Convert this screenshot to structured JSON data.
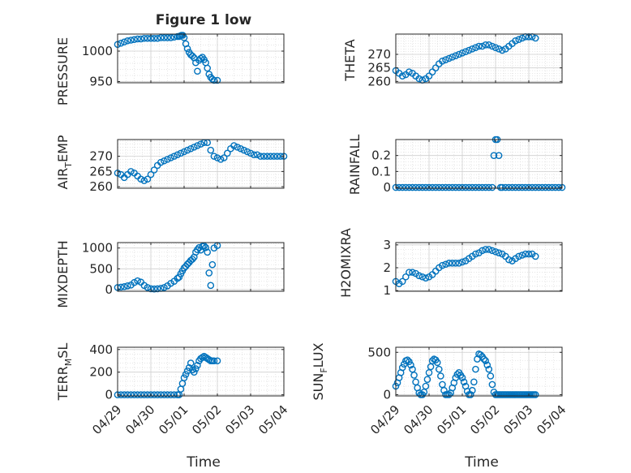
{
  "figure": {
    "title": "Figure 1 low"
  },
  "chart_data": [
    {
      "type": "scatter",
      "ylabel": "PRESSURE",
      "xlabel": "",
      "xlim": [
        0,
        5
      ],
      "xticks": [
        0,
        1,
        2,
        3,
        4,
        5
      ],
      "xticklabels": [
        "04/29",
        "04/30",
        "05/01",
        "05/02",
        "05/03",
        "05/04"
      ],
      "ylim": [
        948,
        1028
      ],
      "yticks": [
        950,
        1000
      ],
      "yticklabels": [
        "950",
        "1000"
      ],
      "grid": true,
      "series": [
        {
          "x": [
            0,
            0.1,
            0.2,
            0.3,
            0.4,
            0.5,
            0.6,
            0.7,
            0.8,
            0.9,
            1.0,
            1.1,
            1.2,
            1.3,
            1.4,
            1.5,
            1.6,
            1.7,
            1.8,
            1.85,
            1.88,
            1.92,
            1.96,
            2.0,
            2.05,
            2.1,
            2.15,
            2.2,
            2.25,
            2.3,
            2.35,
            2.4,
            2.45,
            2.5,
            2.55,
            2.6,
            2.65,
            2.7,
            2.75,
            2.8,
            2.85,
            2.9,
            3.0
          ],
          "y": [
            1011,
            1013,
            1015,
            1017,
            1018,
            1019,
            1020,
            1020,
            1021,
            1021,
            1021,
            1021,
            1021,
            1022,
            1022,
            1022,
            1022,
            1023,
            1024,
            1024,
            1025,
            1026,
            1026,
            1022,
            1012,
            1004,
            998,
            994,
            992,
            989,
            981,
            967,
            985,
            988,
            990,
            986,
            981,
            972,
            962,
            957,
            954,
            952,
            952
          ]
        }
      ]
    },
    {
      "type": "scatter",
      "ylabel": "THETA",
      "xlabel": "",
      "xlim": [
        0,
        5
      ],
      "xticks": [
        0,
        1,
        2,
        3,
        4,
        5
      ],
      "xticklabels": [
        "04/29",
        "04/30",
        "05/01",
        "05/02",
        "05/03",
        "05/04"
      ],
      "ylim": [
        259.5,
        277.5
      ],
      "yticks": [
        260,
        265,
        270
      ],
      "yticklabels": [
        "260",
        "265",
        "270"
      ],
      "grid": true,
      "series": [
        {
          "x": [
            0,
            0.1,
            0.2,
            0.3,
            0.4,
            0.5,
            0.6,
            0.7,
            0.8,
            0.9,
            1.0,
            1.1,
            1.2,
            1.3,
            1.4,
            1.5,
            1.6,
            1.7,
            1.8,
            1.9,
            2.0,
            2.1,
            2.2,
            2.3,
            2.4,
            2.5,
            2.6,
            2.7,
            2.8,
            2.9,
            3.0,
            3.1,
            3.2,
            3.3,
            3.4,
            3.5,
            3.6,
            3.7,
            3.8,
            3.9,
            4.0,
            4.1,
            4.2
          ],
          "y": [
            264.0,
            263.0,
            262.0,
            262.5,
            263.5,
            263.0,
            262.0,
            261.0,
            260.5,
            261.0,
            262.0,
            263.5,
            265.0,
            266.5,
            267.5,
            268.0,
            268.5,
            269.0,
            269.5,
            270.0,
            270.5,
            271.0,
            271.5,
            272.0,
            272.5,
            273.0,
            273.0,
            273.5,
            273.5,
            273.0,
            272.5,
            272.0,
            271.5,
            272.0,
            273.0,
            274.0,
            275.0,
            275.5,
            276.0,
            276.5,
            276.5,
            276.5,
            276.0
          ]
        }
      ]
    },
    {
      "type": "scatter",
      "ylabel": "AIR_TEMP",
      "xlabel": "",
      "xlim": [
        0,
        5
      ],
      "xticks": [
        0,
        1,
        2,
        3,
        4,
        5
      ],
      "xticklabels": [
        "04/29",
        "04/30",
        "05/01",
        "05/02",
        "05/03",
        "05/04"
      ],
      "ylim": [
        259.5,
        275.5
      ],
      "yticks": [
        260,
        265,
        270
      ],
      "yticklabels": [
        "260",
        "265",
        "270"
      ],
      "grid": true,
      "series": [
        {
          "x": [
            0,
            0.1,
            0.2,
            0.3,
            0.4,
            0.5,
            0.6,
            0.7,
            0.8,
            0.9,
            1.0,
            1.1,
            1.2,
            1.3,
            1.4,
            1.5,
            1.6,
            1.7,
            1.8,
            1.9,
            2.0,
            2.1,
            2.2,
            2.3,
            2.4,
            2.5,
            2.6,
            2.7,
            2.8,
            2.9,
            3.0,
            3.1,
            3.2,
            3.3,
            3.4,
            3.5,
            3.6,
            3.7,
            3.8,
            3.9,
            4.0,
            4.1,
            4.2,
            4.3,
            4.4,
            4.5,
            4.6,
            4.7,
            4.8,
            4.9,
            5.0
          ],
          "y": [
            264.5,
            264.0,
            263.0,
            264.0,
            265.0,
            264.5,
            263.5,
            262.5,
            262.0,
            262.5,
            264.0,
            265.5,
            267.0,
            268.0,
            268.5,
            269.0,
            269.5,
            270.0,
            270.5,
            271.0,
            271.5,
            272.0,
            272.5,
            273.0,
            273.5,
            274.0,
            274.5,
            274.5,
            272.0,
            270.0,
            269.5,
            269.0,
            269.5,
            271.0,
            272.5,
            273.5,
            273.0,
            272.5,
            272.0,
            271.5,
            271.0,
            270.5,
            270.5,
            270.0,
            270.0,
            270.0,
            270.0,
            270.0,
            270.0,
            270.0,
            270.0
          ]
        }
      ]
    },
    {
      "type": "scatter",
      "ylabel": "RAINFALL",
      "xlabel": "",
      "xlim": [
        0,
        5
      ],
      "xticks": [
        0,
        1,
        2,
        3,
        4,
        5
      ],
      "xticklabels": [
        "04/29",
        "04/30",
        "05/01",
        "05/02",
        "05/03",
        "05/04"
      ],
      "ylim": [
        -0.005,
        0.3
      ],
      "yticks": [
        0,
        0.1,
        0.2
      ],
      "yticklabels": [
        "0",
        "0.1",
        "0.2"
      ],
      "grid": true,
      "series": [
        {
          "x": [
            0,
            0.1,
            0.2,
            0.3,
            0.4,
            0.5,
            0.6,
            0.7,
            0.8,
            0.9,
            1.0,
            1.1,
            1.2,
            1.3,
            1.4,
            1.5,
            1.6,
            1.7,
            1.8,
            1.9,
            2.0,
            2.1,
            2.2,
            2.3,
            2.4,
            2.5,
            2.6,
            2.7,
            2.8,
            2.9,
            2.95,
            3.0,
            3.05,
            3.1,
            3.15,
            3.2,
            3.3,
            3.4,
            3.5,
            3.6,
            3.7,
            3.8,
            3.9,
            4.0,
            4.1,
            4.2,
            4.3,
            4.4,
            4.5,
            4.6,
            4.7,
            4.8,
            4.9,
            5.0
          ],
          "y": [
            0,
            0,
            0,
            0,
            0,
            0,
            0,
            0,
            0,
            0,
            0,
            0,
            0,
            0,
            0,
            0,
            0,
            0,
            0,
            0,
            0,
            0,
            0,
            0,
            0,
            0,
            0,
            0,
            0,
            0,
            0.2,
            0.3,
            0.3,
            0.2,
            0,
            0,
            0,
            0,
            0,
            0,
            0,
            0,
            0,
            0,
            0,
            0,
            0,
            0,
            0,
            0,
            0,
            0,
            0,
            0
          ]
        }
      ]
    },
    {
      "type": "scatter",
      "ylabel": "MIXDEPTH",
      "xlabel": "",
      "xlim": [
        0,
        5
      ],
      "xticks": [
        0,
        1,
        2,
        3,
        4,
        5
      ],
      "xticklabels": [
        "04/29",
        "04/30",
        "05/01",
        "05/02",
        "05/03",
        "05/04"
      ],
      "ylim": [
        -40,
        1130
      ],
      "yticks": [
        0,
        500,
        1000
      ],
      "yticklabels": [
        "0",
        "500",
        "1000"
      ],
      "grid": true,
      "series": [
        {
          "x": [
            0,
            0.1,
            0.2,
            0.3,
            0.4,
            0.5,
            0.6,
            0.7,
            0.8,
            0.9,
            1.0,
            1.1,
            1.2,
            1.3,
            1.4,
            1.5,
            1.6,
            1.7,
            1.8,
            1.85,
            1.9,
            1.95,
            2.0,
            2.05,
            2.1,
            2.15,
            2.2,
            2.25,
            2.3,
            2.35,
            2.4,
            2.45,
            2.5,
            2.55,
            2.6,
            2.65,
            2.7,
            2.75,
            2.8,
            2.85,
            2.9,
            3.0
          ],
          "y": [
            50,
            60,
            70,
            90,
            110,
            170,
            210,
            180,
            100,
            50,
            20,
            15,
            20,
            30,
            50,
            90,
            150,
            200,
            270,
            300,
            380,
            450,
            520,
            560,
            610,
            650,
            700,
            730,
            780,
            900,
            960,
            1010,
            950,
            1040,
            1050,
            1010,
            900,
            400,
            100,
            600,
            1000,
            1060
          ]
        }
      ]
    },
    {
      "type": "scatter",
      "ylabel": "H2OMIXRA",
      "xlabel": "",
      "xlim": [
        0,
        5
      ],
      "xticks": [
        0,
        1,
        2,
        3,
        4,
        5
      ],
      "xticklabels": [
        "04/29",
        "04/30",
        "05/01",
        "05/02",
        "05/03",
        "05/04"
      ],
      "ylim": [
        0.97,
        3.1
      ],
      "yticks": [
        1,
        2,
        3
      ],
      "yticklabels": [
        "1",
        "2",
        "3"
      ],
      "grid": true,
      "series": [
        {
          "x": [
            0,
            0.1,
            0.2,
            0.3,
            0.4,
            0.5,
            0.6,
            0.7,
            0.8,
            0.9,
            1.0,
            1.1,
            1.2,
            1.3,
            1.4,
            1.5,
            1.6,
            1.7,
            1.8,
            1.9,
            2.0,
            2.1,
            2.2,
            2.3,
            2.4,
            2.5,
            2.6,
            2.7,
            2.8,
            2.9,
            3.0,
            3.1,
            3.2,
            3.3,
            3.4,
            3.5,
            3.6,
            3.7,
            3.8,
            3.9,
            4.0,
            4.1,
            4.2
          ],
          "y": [
            1.4,
            1.3,
            1.4,
            1.6,
            1.8,
            1.8,
            1.75,
            1.65,
            1.6,
            1.55,
            1.6,
            1.7,
            1.85,
            2.0,
            2.1,
            2.15,
            2.2,
            2.2,
            2.2,
            2.2,
            2.25,
            2.3,
            2.4,
            2.5,
            2.6,
            2.65,
            2.75,
            2.8,
            2.8,
            2.75,
            2.7,
            2.65,
            2.6,
            2.5,
            2.35,
            2.3,
            2.4,
            2.5,
            2.55,
            2.6,
            2.6,
            2.6,
            2.5
          ]
        }
      ]
    },
    {
      "type": "scatter",
      "ylabel": "TERR_MSL",
      "xlabel": "Time",
      "xlim": [
        0,
        5
      ],
      "xticks": [
        0,
        1,
        2,
        3,
        4,
        5
      ],
      "xticklabels": [
        "04/29",
        "04/30",
        "05/01",
        "05/02",
        "05/03",
        "05/04"
      ],
      "ylim": [
        -10,
        420
      ],
      "yticks": [
        0,
        200,
        400
      ],
      "yticklabels": [
        "0",
        "200",
        "400"
      ],
      "grid": true,
      "series": [
        {
          "x": [
            0,
            0.1,
            0.2,
            0.3,
            0.4,
            0.5,
            0.6,
            0.7,
            0.8,
            0.9,
            1.0,
            1.1,
            1.2,
            1.3,
            1.4,
            1.5,
            1.6,
            1.7,
            1.8,
            1.85,
            1.9,
            1.95,
            2.0,
            2.05,
            2.1,
            2.15,
            2.2,
            2.25,
            2.3,
            2.35,
            2.4,
            2.45,
            2.5,
            2.55,
            2.6,
            2.65,
            2.7,
            2.75,
            2.8,
            2.85,
            2.9,
            3.0
          ],
          "y": [
            0,
            0,
            0,
            0,
            0,
            0,
            0,
            0,
            0,
            0,
            0,
            0,
            0,
            0,
            0,
            0,
            0,
            0,
            0,
            0,
            50,
            100,
            150,
            180,
            210,
            240,
            280,
            220,
            200,
            230,
            260,
            300,
            320,
            330,
            340,
            330,
            320,
            310,
            300,
            300,
            300,
            300
          ]
        }
      ]
    },
    {
      "type": "scatter",
      "ylabel": "SUN_FLUX",
      "xlabel": "Time",
      "xlim": [
        0,
        5
      ],
      "xticks": [
        0,
        1,
        2,
        3,
        4,
        5
      ],
      "xticklabels": [
        "04/29",
        "04/30",
        "05/01",
        "05/02",
        "05/03",
        "05/04"
      ],
      "ylim": [
        -15,
        560
      ],
      "yticks": [
        0,
        500
      ],
      "yticklabels": [
        "0",
        "500"
      ],
      "grid": true,
      "series": [
        {
          "x": [
            0,
            0.05,
            0.1,
            0.15,
            0.2,
            0.25,
            0.3,
            0.35,
            0.4,
            0.45,
            0.5,
            0.55,
            0.6,
            0.65,
            0.7,
            0.75,
            0.8,
            0.85,
            0.9,
            0.95,
            1.0,
            1.05,
            1.1,
            1.15,
            1.2,
            1.25,
            1.3,
            1.35,
            1.4,
            1.45,
            1.5,
            1.55,
            1.6,
            1.65,
            1.7,
            1.75,
            1.8,
            1.85,
            1.9,
            1.95,
            2.0,
            2.05,
            2.1,
            2.15,
            2.2,
            2.25,
            2.3,
            2.35,
            2.4,
            2.45,
            2.5,
            2.55,
            2.6,
            2.65,
            2.7,
            2.75,
            2.8,
            2.85,
            2.9,
            2.95,
            3.0,
            3.05,
            3.1,
            3.15,
            3.2,
            3.25,
            3.3,
            3.35,
            3.4,
            3.45,
            3.5,
            3.55,
            3.6,
            3.65,
            3.7,
            3.75,
            3.8,
            3.85,
            3.9,
            3.95,
            4.0,
            4.05,
            4.1,
            4.15,
            4.2
          ],
          "y": [
            100,
            140,
            200,
            260,
            320,
            360,
            400,
            410,
            390,
            350,
            300,
            230,
            150,
            80,
            20,
            0,
            0,
            30,
            100,
            180,
            260,
            330,
            400,
            420,
            410,
            380,
            300,
            220,
            120,
            50,
            0,
            0,
            0,
            20,
            80,
            140,
            200,
            240,
            260,
            230,
            200,
            150,
            100,
            40,
            0,
            0,
            50,
            150,
            300,
            420,
            480,
            470,
            450,
            420,
            400,
            350,
            300,
            220,
            120,
            30,
            0,
            0,
            0,
            0,
            0,
            0,
            0,
            0,
            0,
            0,
            0,
            0,
            0,
            0,
            0,
            0,
            0,
            0,
            0,
            0,
            0,
            0,
            0,
            0,
            0
          ]
        }
      ]
    }
  ],
  "panel_labels": {
    "p0": {
      "ylabel": "PRESSURE"
    },
    "p1": {
      "ylabel": "THETA"
    },
    "p2": {
      "ylabel_main": "AIR",
      "ylabel_sub": "T",
      "ylabel_rest": "EMP"
    },
    "p3": {
      "ylabel": "RAINFALL"
    },
    "p4": {
      "ylabel": "MIXDEPTH"
    },
    "p5": {
      "ylabel": "H2OMIXRA"
    },
    "p6": {
      "ylabel_main": "TERR",
      "ylabel_sub": "M",
      "ylabel_rest": "SL"
    },
    "p7": {
      "ylabel_main": "SUN",
      "ylabel_sub": "F",
      "ylabel_rest": "LUX"
    }
  },
  "colors": {
    "marker": "#0072BD",
    "axis": "#262626",
    "grid": "#dcdcdc"
  }
}
